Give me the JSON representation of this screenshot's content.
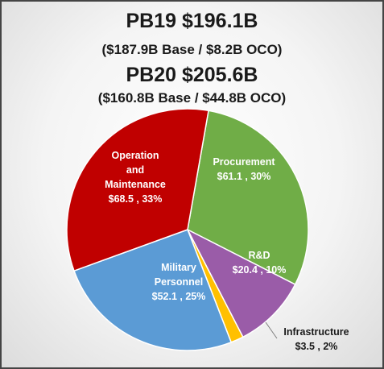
{
  "header": {
    "title1": "PB19 $196.1B",
    "subtitle1": "($187.9B Base / $8.2B OCO)",
    "title2": "PB20 $205.6B",
    "subtitle2": "($160.8B Base / $44.8B OCO)"
  },
  "chart_data": {
    "type": "pie",
    "units": "$B",
    "slices": [
      {
        "label": [
          "Procurement"
        ],
        "value_text": "$61.1 , 30%",
        "value": 61.1,
        "percent": 30,
        "color": "#70ad47",
        "text_color": "#ffffff"
      },
      {
        "label": [
          "R&D"
        ],
        "value_text": "$20.4 , 10%",
        "value": 20.4,
        "percent": 10,
        "color": "#9a5ca8",
        "text_color": "#ffffff"
      },
      {
        "label": [
          "Infrastructure"
        ],
        "value_text": "$3.5 , 2%",
        "value": 3.5,
        "percent": 2,
        "color": "#ffc000",
        "text_color": "#1a1a1a"
      },
      {
        "label": [
          "Military",
          "Personnel"
        ],
        "value_text": "$52.1 , 25%",
        "value": 52.1,
        "percent": 25,
        "color": "#5b9bd5",
        "text_color": "#ffffff"
      },
      {
        "label": [
          "Operation",
          "and",
          "Maintenance"
        ],
        "value_text": "$68.5 , 33%",
        "value": 68.5,
        "percent": 33,
        "color": "#c00000",
        "text_color": "#ffffff"
      }
    ],
    "start_angle_deg": 10
  }
}
